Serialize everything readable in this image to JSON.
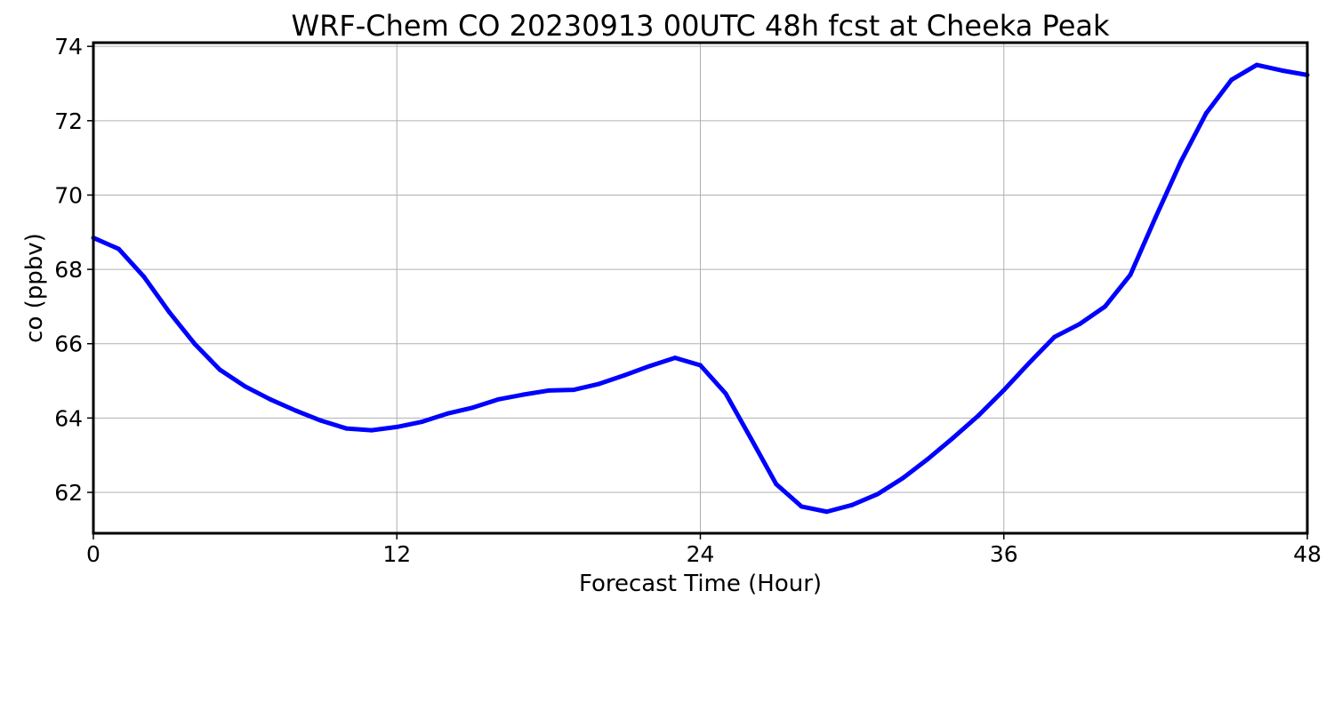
{
  "chart_data": {
    "type": "line",
    "title": "WRF-Chem CO  20230913 00UTC 48h fcst at Cheeka Peak",
    "xlabel": "Forecast Time (Hour)",
    "ylabel": "co  (ppbv)",
    "xlim": [
      0,
      48
    ],
    "ylim": [
      60.9,
      74.1
    ],
    "xticks": [
      0,
      12,
      24,
      36,
      48
    ],
    "yticks": [
      62,
      64,
      66,
      68,
      70,
      72,
      74
    ],
    "grid": true,
    "series": [
      {
        "color": "#0000ff",
        "x": [
          0,
          1,
          2,
          3,
          4,
          5,
          6,
          7,
          8,
          9,
          10,
          11,
          12,
          13,
          14,
          15,
          16,
          17,
          18,
          19,
          20,
          21,
          22,
          23,
          24,
          25,
          26,
          27,
          28,
          29,
          30,
          31,
          32,
          33,
          34,
          35,
          36,
          37,
          38,
          39,
          40,
          41,
          42,
          43,
          44,
          45,
          46,
          47,
          48
        ],
        "y": [
          68.85,
          68.55,
          67.8,
          66.85,
          66.0,
          65.3,
          64.85,
          64.5,
          64.2,
          63.93,
          63.72,
          63.67,
          63.76,
          63.9,
          64.12,
          64.28,
          64.5,
          64.63,
          64.74,
          64.76,
          64.92,
          65.15,
          65.4,
          65.62,
          65.42,
          64.66,
          63.45,
          62.22,
          61.62,
          61.48,
          61.66,
          61.95,
          62.38,
          62.9,
          63.47,
          64.07,
          64.75,
          65.48,
          66.18,
          66.53,
          67.0,
          67.85,
          69.4,
          70.9,
          72.2,
          73.1,
          73.5,
          73.35,
          73.23
        ]
      }
    ]
  }
}
